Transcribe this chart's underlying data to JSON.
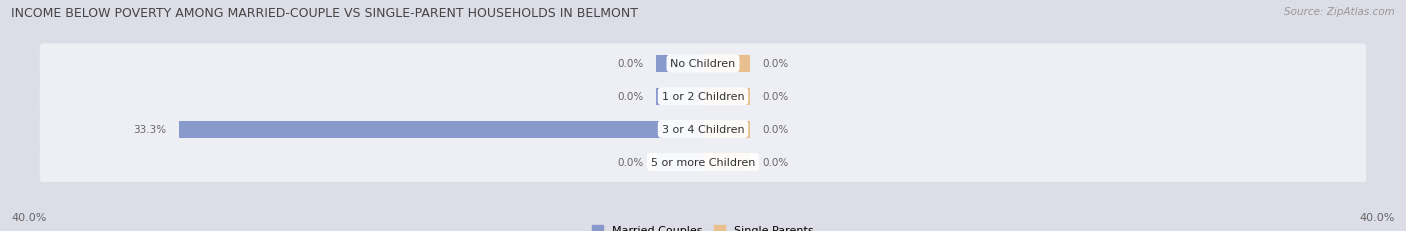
{
  "title": "INCOME BELOW POVERTY AMONG MARRIED-COUPLE VS SINGLE-PARENT HOUSEHOLDS IN BELMONT",
  "source": "Source: ZipAtlas.com",
  "categories": [
    "No Children",
    "1 or 2 Children",
    "3 or 4 Children",
    "5 or more Children"
  ],
  "married_values": [
    0.0,
    0.0,
    33.3,
    0.0
  ],
  "single_values": [
    0.0,
    0.0,
    0.0,
    0.0
  ],
  "married_color": "#8899cc",
  "single_color": "#e8c090",
  "background_color": "#dddde8",
  "row_bg_color": "#eeeeF5",
  "label_color": "#666666",
  "title_color": "#444444",
  "category_label_color": "#333333",
  "bar_height": 0.52,
  "xlim_abs": 40.0,
  "title_fontsize": 9.0,
  "source_fontsize": 7.5,
  "value_fontsize": 7.5,
  "category_fontsize": 8.0,
  "axis_label_fontsize": 8.0,
  "legend_fontsize": 8.0,
  "stub_bar_width": 3.0
}
